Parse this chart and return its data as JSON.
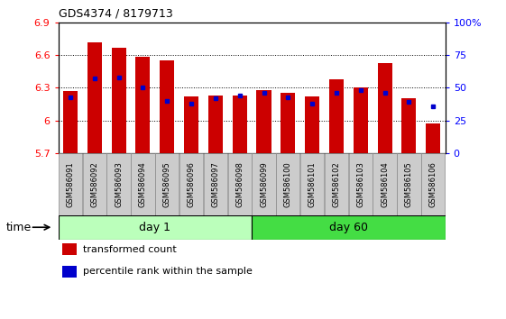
{
  "title": "GDS4374 / 8179713",
  "samples": [
    "GSM586091",
    "GSM586092",
    "GSM586093",
    "GSM586094",
    "GSM586095",
    "GSM586096",
    "GSM586097",
    "GSM586098",
    "GSM586099",
    "GSM586100",
    "GSM586101",
    "GSM586102",
    "GSM586103",
    "GSM586104",
    "GSM586105",
    "GSM586106"
  ],
  "red_values": [
    6.27,
    6.72,
    6.67,
    6.58,
    6.55,
    6.22,
    6.23,
    6.23,
    6.28,
    6.25,
    6.22,
    6.38,
    6.3,
    6.53,
    6.2,
    5.97
  ],
  "blue_values": [
    0.43,
    0.57,
    0.58,
    0.5,
    0.4,
    0.38,
    0.42,
    0.44,
    0.46,
    0.43,
    0.38,
    0.46,
    0.48,
    0.46,
    0.39,
    0.36
  ],
  "ymin": 5.7,
  "ymax": 6.9,
  "yticks": [
    5.7,
    6.0,
    6.3,
    6.6,
    6.9
  ],
  "ytick_labels": [
    "5.7",
    "6",
    "6.3",
    "6.6",
    "6.9"
  ],
  "right_yticks": [
    0.0,
    0.25,
    0.5,
    0.75,
    1.0
  ],
  "right_ytick_labels": [
    "0",
    "25",
    "50",
    "75",
    "100%"
  ],
  "bar_color": "#cc0000",
  "marker_color": "#0000cc",
  "grid_color": "#000000",
  "day1_label": "day 1",
  "day60_label": "day 60",
  "day1_color": "#bbffbb",
  "day60_color": "#44dd44",
  "time_label": "time",
  "legend1": "transformed count",
  "legend2": "percentile rank within the sample",
  "bar_width": 0.6,
  "label_box_color": "#cccccc",
  "n_day1": 8,
  "n_day60": 8
}
